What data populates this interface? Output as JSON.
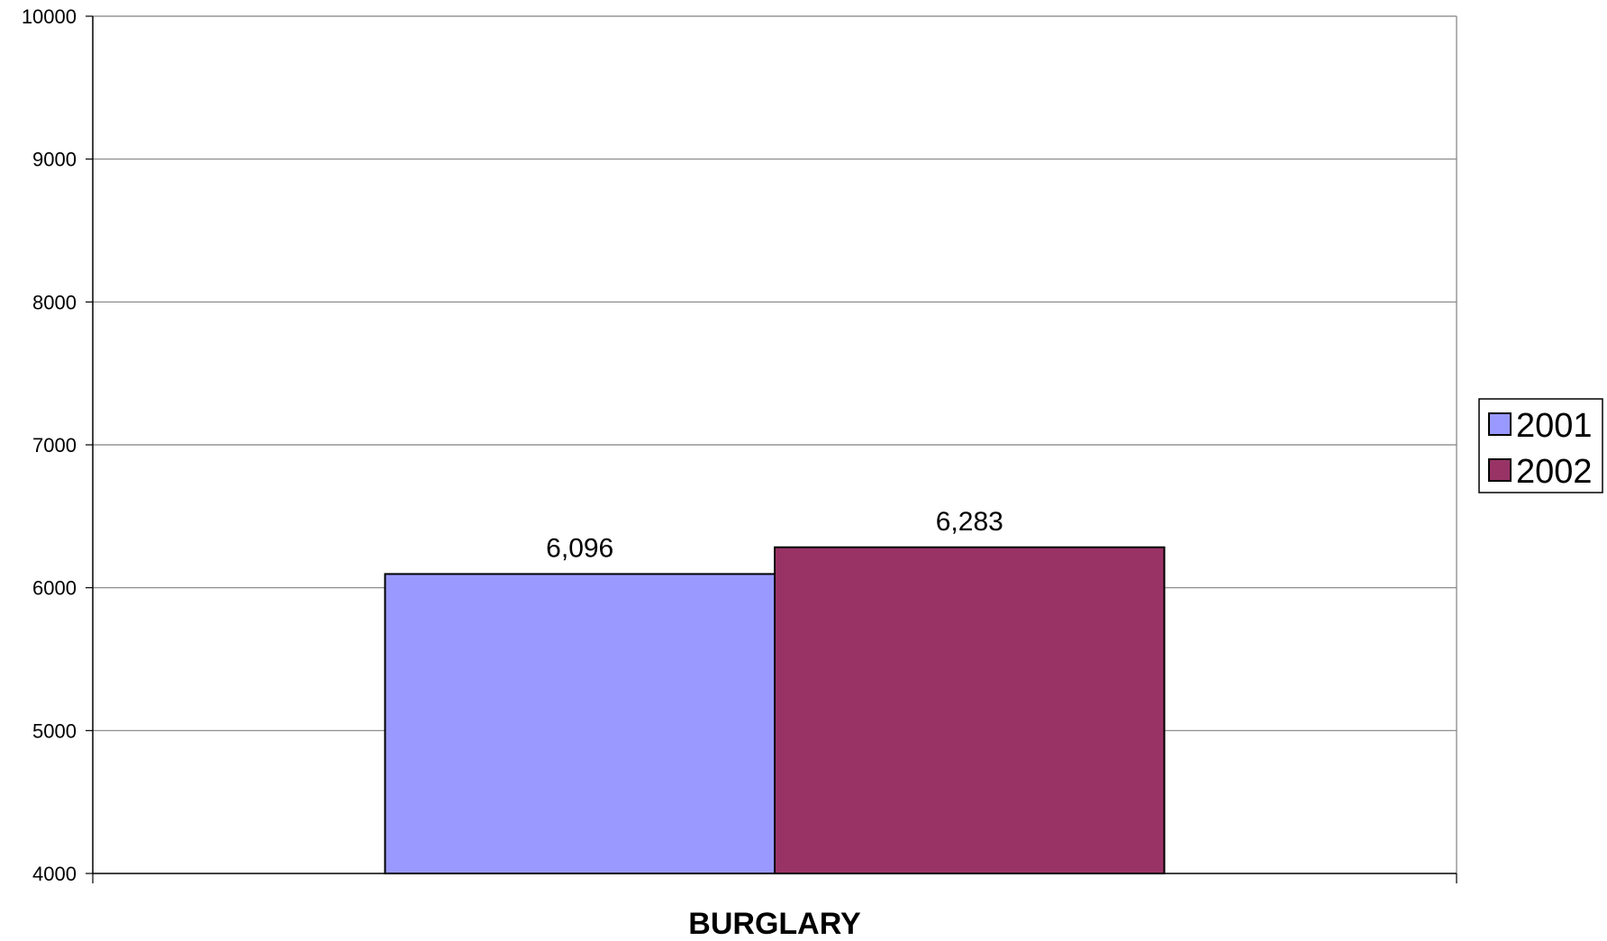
{
  "chart_data": {
    "type": "bar",
    "categories": [
      "BURGLARY"
    ],
    "series": [
      {
        "name": "2001",
        "values": [
          6096
        ],
        "color": "#9999ff",
        "label": "6,096"
      },
      {
        "name": "2002",
        "values": [
          6283
        ],
        "color": "#993366",
        "label": "6,283"
      }
    ],
    "title": "",
    "xlabel": "",
    "ylabel": "",
    "ylim": [
      4000,
      10000
    ],
    "yticks": [
      "4000",
      "5000",
      "6000",
      "7000",
      "8000",
      "9000",
      "10000"
    ],
    "grid": true,
    "legend": "right"
  }
}
